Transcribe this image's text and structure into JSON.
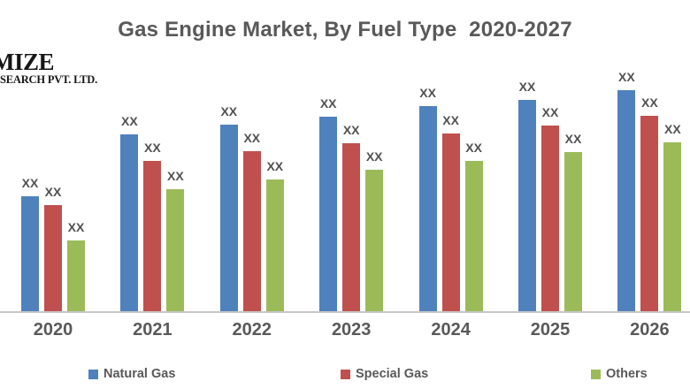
{
  "title": "Gas Engine Market, By Fuel Type  2020-2027",
  "logo": {
    "line1": "MIZE",
    "line2": "SEARCH PVT. LTD."
  },
  "colors": {
    "natural_gas": "#4F81BD",
    "special_gas": "#C0504D",
    "others": "#9BBB59",
    "axis_line": "#C6C6C6",
    "text": "#595959"
  },
  "chart_data": {
    "type": "bar",
    "title": "Gas Engine Market, By Fuel Type  2020-2027",
    "categories": [
      "2020",
      "2021",
      "2022",
      "2023",
      "2024",
      "2025",
      "2026"
    ],
    "series": [
      {
        "name": "Natural Gas",
        "color": "#4F81BD",
        "values": [
          131,
          201,
          212,
          221,
          233,
          240,
          251
        ]
      },
      {
        "name": "Special Gas",
        "color": "#C0504D",
        "values": [
          121,
          171,
          182,
          191,
          202,
          211,
          222
        ]
      },
      {
        "name": "Others",
        "color": "#9BBB59",
        "values": [
          81,
          139,
          150,
          161,
          171,
          181,
          192
        ]
      }
    ],
    "data_label_text": "XX",
    "xlabel": "",
    "ylabel": "",
    "ylim": [
      0,
      260
    ],
    "grid": false,
    "legend_position": "bottom"
  },
  "legend": {
    "items": [
      {
        "label": "Natural Gas",
        "color": "#4F81BD"
      },
      {
        "label": "Special Gas",
        "color": "#C0504D"
      },
      {
        "label": "Others",
        "color": "#9BBB59"
      }
    ]
  }
}
